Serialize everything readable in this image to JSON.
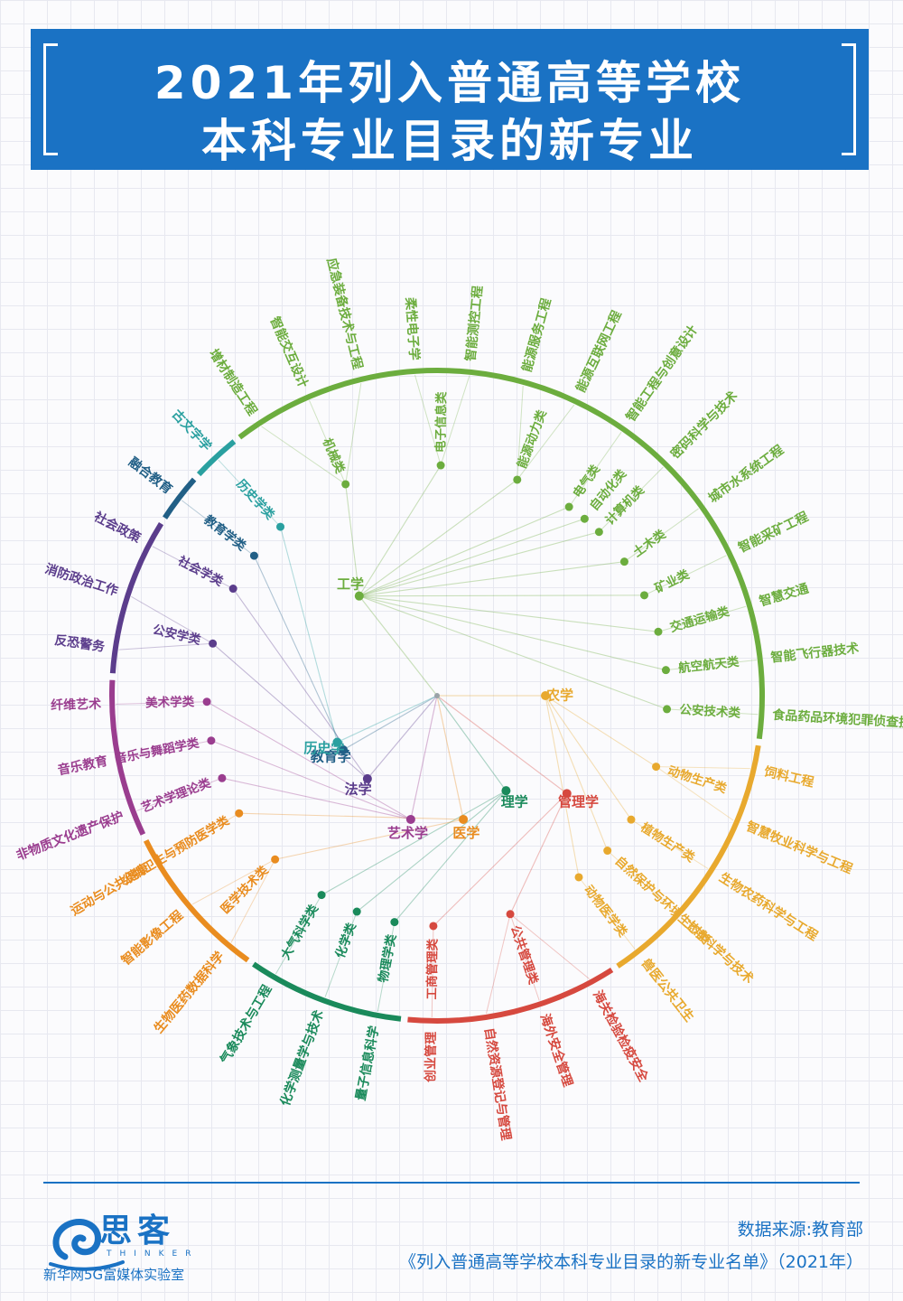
{
  "header": {
    "title_line_1": "2021年列入普通高等学校",
    "title_line_2": "本科专业目录的新专业"
  },
  "diagram": {
    "center_text": "",
    "categories": [
      {
        "name": "工学",
        "color": "#6cad3e",
        "subcategories": [
          {
            "name": "机械类",
            "majors": [
              "增材制造工程",
              "智能交互设计",
              "应急装备技术与工程"
            ]
          },
          {
            "name": "电子信息类",
            "majors": [
              "柔性电子学",
              "智能测控工程"
            ]
          },
          {
            "name": "能源动力类",
            "majors": [
              "能源服务工程",
              "能源互联网工程"
            ]
          },
          {
            "name": "电气类",
            "majors": [
              "智能工程与创意设计"
            ]
          },
          {
            "name": "自动化类",
            "majors": []
          },
          {
            "name": "计算机类",
            "majors": [
              "密码科学与技术"
            ]
          },
          {
            "name": "土木类",
            "majors": [
              "城市水系统工程"
            ]
          },
          {
            "name": "矿业类",
            "majors": [
              "智能采矿工程"
            ]
          },
          {
            "name": "交通运输类",
            "majors": [
              "智慧交通"
            ]
          },
          {
            "name": "航空航天类",
            "majors": [
              "智能飞行器技术"
            ]
          },
          {
            "name": "公安技术类",
            "majors": [
              "食品药品环境犯罪侦查技术"
            ]
          }
        ]
      },
      {
        "name": "农学",
        "color": "#e8a92e",
        "subcategories": [
          {
            "name": "动物生产类",
            "majors": [
              "饲料工程",
              "智慧牧业科学与工程"
            ]
          },
          {
            "name": "植物生产类",
            "majors": [
              "生物农药科学与工程"
            ]
          },
          {
            "name": "自然保护与环境生态类",
            "majors": [
              "土地科学与技术"
            ]
          },
          {
            "name": "动物医学类",
            "majors": [
              "兽医公共卫生"
            ]
          }
        ]
      },
      {
        "name": "管理学",
        "color": "#d6493f",
        "subcategories": [
          {
            "name": "公共管理类",
            "majors": [
              "海关检验检疫安全",
              "海外安全管理",
              "自然资源登记与管理"
            ]
          },
          {
            "name": "工商管理类",
            "majors": [
              "创业管理"
            ]
          }
        ]
      },
      {
        "name": "理学",
        "color": "#1a8a5b",
        "subcategories": [
          {
            "name": "物理学类",
            "majors": [
              "量子信息科学"
            ]
          },
          {
            "name": "化学类",
            "majors": [
              "化学测量学与技术"
            ]
          },
          {
            "name": "大气科学类",
            "majors": [
              "气象技术与工程"
            ]
          }
        ]
      },
      {
        "name": "医学",
        "color": "#e98c1f",
        "subcategories": [
          {
            "name": "医学技术类",
            "majors": [
              "生物医药数据科学",
              "智能影像工程"
            ]
          },
          {
            "name": "公共卫生与预防医学类",
            "majors": [
              "运动与公共健康"
            ]
          }
        ]
      },
      {
        "name": "艺术学",
        "color": "#9a3d8f",
        "subcategories": [
          {
            "name": "艺术学理论类",
            "majors": [
              "非物质文化遗产保护"
            ]
          },
          {
            "name": "音乐与舞蹈学类",
            "majors": [
              "音乐教育"
            ]
          },
          {
            "name": "美术学类",
            "majors": [
              "纤维艺术"
            ]
          }
        ]
      },
      {
        "name": "法学",
        "color": "#5b3d8c",
        "subcategories": [
          {
            "name": "公安学类",
            "majors": [
              "反恐警务",
              "消防政治工作"
            ]
          },
          {
            "name": "社会学类",
            "majors": [
              "社会政策"
            ]
          }
        ]
      },
      {
        "name": "教育学",
        "color": "#215f86",
        "subcategories": [
          {
            "name": "教育学类",
            "majors": [
              "融合教育"
            ]
          }
        ]
      },
      {
        "name": "历史学",
        "color": "#2aa0a0",
        "subcategories": [
          {
            "name": "历史学类",
            "majors": [
              "古文字学"
            ]
          }
        ]
      }
    ]
  },
  "footer": {
    "logo_text": "思客",
    "logo_sub": "THINKER",
    "org_name": "新华网5G富媒体实验室",
    "source_line_1": "数据来源:教育部",
    "source_line_2": "《列入普通高等学校本科专业目录的新专业名单》（2021年）",
    "accent_color": "#1a72c4"
  }
}
